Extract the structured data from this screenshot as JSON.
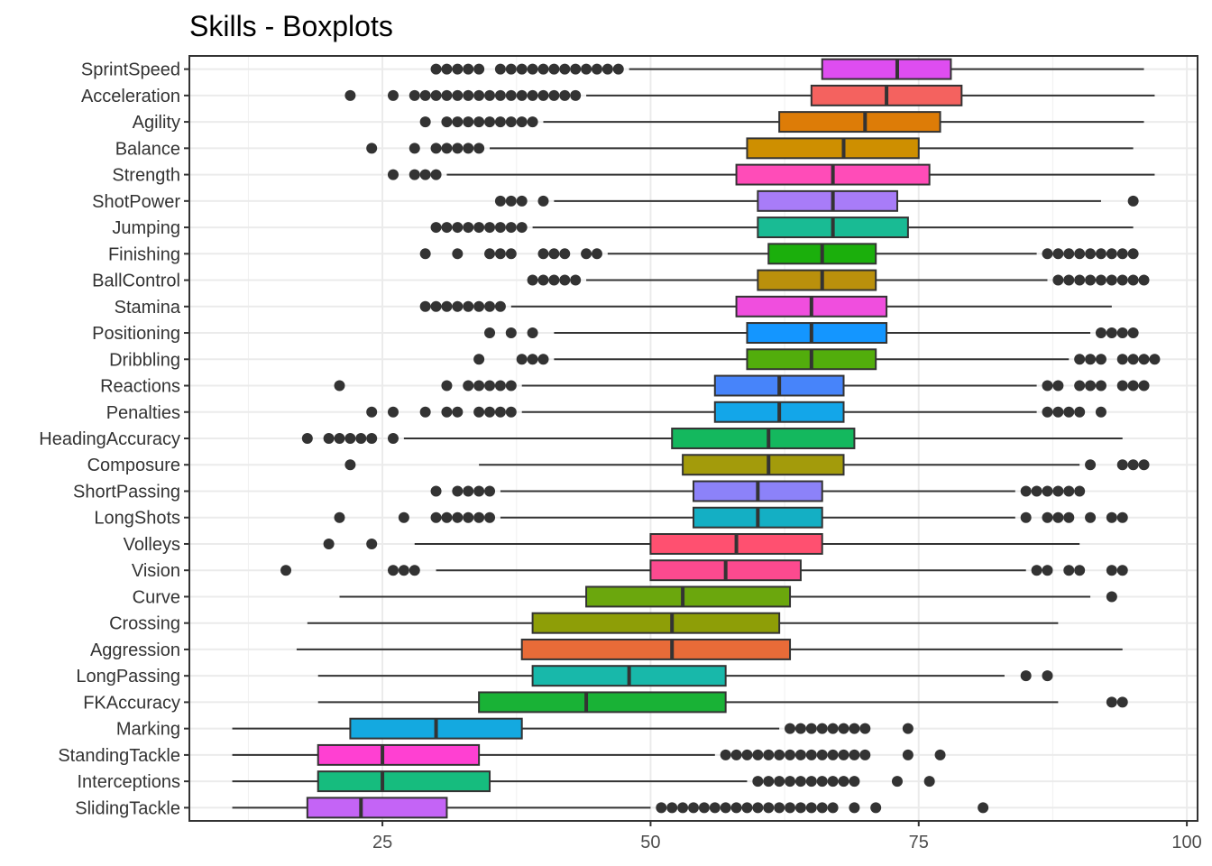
{
  "chart_data": {
    "type": "boxplot",
    "orientation": "horizontal",
    "title": "Skills - Boxplots",
    "xlabel": "",
    "ylabel": "",
    "xlim": [
      7,
      101
    ],
    "xticks": [
      25,
      50,
      75,
      100
    ],
    "xticks_minor": [
      12.5,
      37.5,
      62.5,
      87.5
    ],
    "grid": true,
    "legend": "none",
    "categories": [
      "SprintSpeed",
      "Acceleration",
      "Agility",
      "Balance",
      "Strength",
      "ShotPower",
      "Jumping",
      "Finishing",
      "BallControl",
      "Stamina",
      "Positioning",
      "Dribbling",
      "Reactions",
      "Penalties",
      "HeadingAccuracy",
      "Composure",
      "ShortPassing",
      "LongShots",
      "Volleys",
      "Vision",
      "Curve",
      "Crossing",
      "Aggression",
      "LongPassing",
      "FKAccuracy",
      "Marking",
      "StandingTackle",
      "Interceptions",
      "SlidingTackle"
    ],
    "series": [
      {
        "category": "SprintSpeed",
        "min": 48,
        "q1": 66,
        "median": 73,
        "q3": 78,
        "max": 96,
        "color": "#DE4DF0",
        "outliers": [
          30,
          31,
          32,
          33,
          34,
          36,
          37,
          38,
          39,
          40,
          41,
          42,
          43,
          44,
          45,
          46,
          47
        ]
      },
      {
        "category": "Acceleration",
        "min": 44,
        "q1": 65,
        "median": 72,
        "q3": 79,
        "max": 97,
        "color": "#F4625F",
        "outliers": [
          22,
          26,
          28,
          29,
          30,
          31,
          32,
          33,
          34,
          35,
          36,
          37,
          38,
          39,
          40,
          41,
          42,
          43
        ]
      },
      {
        "category": "Agility",
        "min": 40,
        "q1": 62,
        "median": 70,
        "q3": 77,
        "max": 96,
        "color": "#DD7C07",
        "outliers": [
          29,
          31,
          32,
          33,
          34,
          35,
          36,
          37,
          38,
          39
        ]
      },
      {
        "category": "Balance",
        "min": 35,
        "q1": 59,
        "median": 68,
        "q3": 75,
        "max": 95,
        "color": "#CE8F00",
        "outliers": [
          24,
          28,
          30,
          31,
          32,
          33,
          34
        ]
      },
      {
        "category": "Strength",
        "min": 31,
        "q1": 58,
        "median": 67,
        "q3": 76,
        "max": 97,
        "color": "#FF4CB8",
        "outliers": [
          26,
          28,
          29,
          30
        ]
      },
      {
        "category": "ShotPower",
        "min": 41,
        "q1": 60,
        "median": 67,
        "q3": 73,
        "max": 92,
        "color": "#A87CF8",
        "outliers": [
          36,
          37,
          38,
          40,
          95
        ]
      },
      {
        "category": "Jumping",
        "min": 39,
        "q1": 60,
        "median": 67,
        "q3": 74,
        "max": 95,
        "color": "#19BB94",
        "outliers": [
          30,
          31,
          32,
          33,
          34,
          35,
          36,
          37,
          38
        ]
      },
      {
        "category": "Finishing",
        "min": 46,
        "q1": 61,
        "median": 66,
        "q3": 71,
        "max": 86,
        "color": "#1BAF0C",
        "outliers": [
          29,
          32,
          35,
          36,
          37,
          40,
          41,
          42,
          44,
          45,
          87,
          88,
          89,
          90,
          91,
          92,
          93,
          94,
          95
        ]
      },
      {
        "category": "BallControl",
        "min": 44,
        "q1": 60,
        "median": 66,
        "q3": 71,
        "max": 87,
        "color": "#BA900C",
        "outliers": [
          39,
          40,
          41,
          42,
          43,
          88,
          89,
          90,
          91,
          92,
          93,
          94,
          95,
          96
        ]
      },
      {
        "category": "Stamina",
        "min": 37,
        "q1": 58,
        "median": 65,
        "q3": 72,
        "max": 93,
        "color": "#F04EDE",
        "outliers": [
          29,
          30,
          31,
          32,
          33,
          34,
          35,
          36
        ]
      },
      {
        "category": "Positioning",
        "min": 41,
        "q1": 59,
        "median": 65,
        "q3": 72,
        "max": 91,
        "color": "#1496FF",
        "outliers": [
          35,
          37,
          39,
          92,
          93,
          94,
          95
        ]
      },
      {
        "category": "Dribbling",
        "min": 41,
        "q1": 59,
        "median": 65,
        "q3": 71,
        "max": 89,
        "color": "#52AD0C",
        "outliers": [
          34,
          38,
          39,
          40,
          90,
          91,
          92,
          94,
          95,
          96,
          97
        ]
      },
      {
        "category": "Reactions",
        "min": 38,
        "q1": 56,
        "median": 62,
        "q3": 68,
        "max": 86,
        "color": "#4784FA",
        "outliers": [
          21,
          31,
          33,
          34,
          35,
          36,
          37,
          87,
          88,
          90,
          91,
          92,
          94,
          95,
          96
        ]
      },
      {
        "category": "Penalties",
        "min": 38,
        "q1": 56,
        "median": 62,
        "q3": 68,
        "max": 86,
        "color": "#13A6E9",
        "outliers": [
          24,
          26,
          29,
          31,
          32,
          34,
          35,
          36,
          37,
          87,
          88,
          89,
          90,
          92
        ]
      },
      {
        "category": "HeadingAccuracy",
        "min": 27,
        "q1": 52,
        "median": 61,
        "q3": 69,
        "max": 94,
        "color": "#14B85E",
        "outliers": [
          18,
          20,
          21,
          22,
          23,
          24,
          26
        ]
      },
      {
        "category": "Composure",
        "min": 34,
        "q1": 53,
        "median": 61,
        "q3": 68,
        "max": 90,
        "color": "#A39B0B",
        "outliers": [
          22,
          91,
          94,
          95,
          96
        ]
      },
      {
        "category": "ShortPassing",
        "min": 36,
        "q1": 54,
        "median": 60,
        "q3": 66,
        "max": 84,
        "color": "#8C82F9",
        "outliers": [
          30,
          32,
          33,
          34,
          35,
          85,
          86,
          87,
          88,
          89,
          90
        ]
      },
      {
        "category": "LongShots",
        "min": 36,
        "q1": 54,
        "median": 60,
        "q3": 66,
        "max": 84,
        "color": "#14AFC4",
        "outliers": [
          21,
          27,
          30,
          31,
          32,
          33,
          34,
          35,
          85,
          87,
          88,
          89,
          91,
          93,
          94
        ]
      },
      {
        "category": "Volleys",
        "min": 28,
        "q1": 50,
        "median": 58,
        "q3": 66,
        "max": 90,
        "color": "#FF5070",
        "outliers": [
          20,
          24
        ]
      },
      {
        "category": "Vision",
        "min": 30,
        "q1": 50,
        "median": 57,
        "q3": 64,
        "max": 85,
        "color": "#FC4A8F",
        "outliers": [
          16,
          26,
          27,
          28,
          86,
          87,
          89,
          90,
          93,
          94
        ]
      },
      {
        "category": "Curve",
        "min": 21,
        "q1": 44,
        "median": 53,
        "q3": 63,
        "max": 91,
        "color": "#6BA70D",
        "outliers": [
          93
        ]
      },
      {
        "category": "Crossing",
        "min": 18,
        "q1": 39,
        "median": 52,
        "q3": 62,
        "max": 88,
        "color": "#8E9E07",
        "outliers": []
      },
      {
        "category": "Aggression",
        "min": 17,
        "q1": 38,
        "median": 52,
        "q3": 63,
        "max": 94,
        "color": "#E86B38",
        "outliers": []
      },
      {
        "category": "LongPassing",
        "min": 19,
        "q1": 39,
        "median": 48,
        "q3": 57,
        "max": 83,
        "color": "#18B8AA",
        "outliers": [
          85,
          87
        ]
      },
      {
        "category": "FKAccuracy",
        "min": 19,
        "q1": 34,
        "median": 44,
        "q3": 57,
        "max": 88,
        "color": "#19B236",
        "outliers": [
          93,
          94
        ]
      },
      {
        "category": "Marking",
        "min": 11,
        "q1": 22,
        "median": 30,
        "q3": 38,
        "max": 62,
        "color": "#14A9E0",
        "outliers": [
          63,
          64,
          65,
          66,
          67,
          68,
          69,
          70,
          74
        ]
      },
      {
        "category": "StandingTackle",
        "min": 11,
        "q1": 19,
        "median": 25,
        "q3": 34,
        "max": 56,
        "color": "#FF40D2",
        "outliers": [
          57,
          58,
          59,
          60,
          61,
          62,
          63,
          64,
          65,
          66,
          67,
          68,
          69,
          70,
          74,
          77
        ]
      },
      {
        "category": "Interceptions",
        "min": 11,
        "q1": 19,
        "median": 25,
        "q3": 35,
        "max": 59,
        "color": "#16BC7E",
        "outliers": [
          60,
          61,
          62,
          63,
          64,
          65,
          66,
          67,
          68,
          69,
          73,
          76
        ]
      },
      {
        "category": "SlidingTackle",
        "min": 11,
        "q1": 18,
        "median": 23,
        "q3": 31,
        "max": 50,
        "color": "#C464F6",
        "outliers": [
          51,
          52,
          53,
          54,
          55,
          56,
          57,
          58,
          59,
          60,
          61,
          62,
          63,
          64,
          65,
          66,
          67,
          69,
          71,
          81
        ]
      }
    ]
  }
}
